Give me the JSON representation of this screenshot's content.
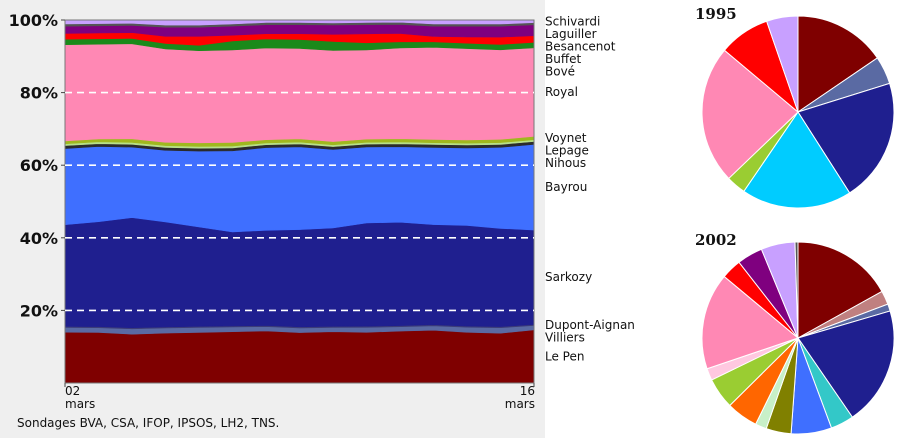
{
  "chart_data": [
    {
      "type": "area",
      "stacked_percent": true,
      "x": [
        "02 mars",
        "",
        "",
        "",
        "",
        "",
        "",
        "",
        "",
        "",
        "",
        "",
        "",
        "",
        "16 mars"
      ],
      "x_tick_labels": [
        {
          "day": "02",
          "month": "mars"
        },
        {
          "day": "16",
          "month": "mars"
        }
      ],
      "ylim": [
        0,
        100
      ],
      "yticks": [
        20,
        40,
        60,
        80,
        100
      ],
      "ytick_labels": [
        "20%",
        "40%",
        "60%",
        "80%",
        "100%"
      ],
      "grid": "dashed-white-horizontal",
      "series": [
        {
          "name": "Le Pen",
          "color": "#7f0000",
          "values": [
            14,
            14,
            13.5,
            13.8,
            14,
            14.2,
            14.5,
            14,
            14.3,
            14,
            14.3,
            14.5,
            14,
            13.7,
            14.5
          ]
        },
        {
          "name": "Villiers",
          "color": "#5a6aa3",
          "values": [
            1.3,
            1.3,
            1.5,
            1.4,
            1.4,
            1.3,
            1.2,
            1.3,
            1.2,
            1.4,
            1.2,
            1.2,
            1.4,
            1.5,
            1.2
          ]
        },
        {
          "name": "Dupont-Aignan",
          "color": "#3c3c78",
          "values": [
            0.3,
            0.3,
            0.3,
            0.3,
            0.3,
            0.3,
            0.3,
            0.3,
            0.3,
            0.3,
            0.3,
            0.3,
            0.3,
            0.3,
            0.3
          ]
        },
        {
          "name": "Sarkozy",
          "color": "#1f1f8f",
          "values": [
            28,
            29,
            30.5,
            29,
            27.5,
            26,
            26.5,
            27,
            27.4,
            28.5,
            28.5,
            27.5,
            27.8,
            27,
            25.8
          ]
        },
        {
          "name": "Bayrou",
          "color": "#3f6fff",
          "values": [
            21,
            20.8,
            19.5,
            19.8,
            21,
            22.5,
            23,
            23,
            21.9,
            21,
            20.8,
            21.2,
            21.4,
            22.3,
            23.4
          ]
        },
        {
          "name": "Nihous",
          "color": "#2b2b2b",
          "values": [
            0.8,
            0.8,
            0.8,
            0.8,
            0.8,
            0.8,
            0.8,
            0.8,
            0.8,
            0.8,
            0.8,
            0.8,
            0.8,
            0.8,
            0.8
          ]
        },
        {
          "name": "Lepage",
          "color": "#b8e08a",
          "values": [
            0.5,
            0.5,
            0.5,
            0.5,
            0.5,
            0.5,
            0.5,
            0.5,
            0.5,
            0.5,
            0.5,
            0.5,
            0.5,
            0.5,
            0.5
          ]
        },
        {
          "name": "Voynet",
          "color": "#a0b81e",
          "values": [
            0.8,
            0.8,
            1,
            0.9,
            1,
            1,
            0.9,
            0.9,
            0.9,
            0.9,
            0.9,
            0.9,
            0.9,
            0.9,
            0.9
          ]
        },
        {
          "name": "Royal",
          "color": "#ff88b4",
          "values": [
            26.5,
            26.2,
            26.3,
            25.8,
            25.5,
            25.6,
            25.5,
            25.1,
            25.4,
            24.6,
            25,
            25.3,
            25.2,
            24.6,
            24.2
          ]
        },
        {
          "name": "Bové",
          "color": "#1a8a1a",
          "values": [
            1.5,
            1.5,
            1.5,
            1.5,
            1.5,
            2.5,
            2.5,
            2.5,
            2.5,
            2,
            1.7,
            1.5,
            1.5,
            1.5,
            1.5
          ]
        },
        {
          "name": "Buffet",
          "color": "#ff0000",
          "values": [
            1.6,
            1.6,
            1.6,
            2,
            2.5,
            1.6,
            1.5,
            1.6,
            2,
            2.5,
            2.3,
            1.5,
            1.7,
            2,
            1.8
          ]
        },
        {
          "name": "Besancenot",
          "color": "#7f007f",
          "values": [
            2,
            2,
            2,
            2.5,
            2.5,
            2.5,
            2.5,
            2.5,
            2.6,
            2.5,
            2.5,
            2.8,
            3,
            3,
            3
          ]
        },
        {
          "name": "Laguiller",
          "color": "#555555",
          "values": [
            0.6,
            0.6,
            0.6,
            0.6,
            0.6,
            0.6,
            0.6,
            0.6,
            0.6,
            0.6,
            0.6,
            0.6,
            0.6,
            0.6,
            0.6
          ]
        },
        {
          "name": "Schivardi",
          "color": "#c8a0ff",
          "values": [
            1.1,
            1,
            0.9,
            1.4,
            1.4,
            1.1,
            0.7,
            0.7,
            0.8,
            0.7,
            0.6,
            1.1,
            1.1,
            1.1,
            0.7
          ]
        }
      ],
      "source": "Sondages BVA, CSA, IFOP, IPSOS, LH2, TNS."
    },
    {
      "type": "pie",
      "title": "1995",
      "slices": [
        {
          "value": 15.5,
          "color": "#7f0000"
        },
        {
          "value": 4.7,
          "color": "#5a6aa3"
        },
        {
          "value": 20.8,
          "color": "#1f1f8f"
        },
        {
          "value": 18.6,
          "color": "#00ccff"
        },
        {
          "value": 3.3,
          "color": "#9acd32"
        },
        {
          "value": 23.3,
          "color": "#ff88b4"
        },
        {
          "value": 8.6,
          "color": "#ff0000"
        },
        {
          "value": 5.3,
          "color": "#c8a0ff"
        }
      ]
    },
    {
      "type": "pie",
      "title": "2002",
      "slices": [
        {
          "value": 16.9,
          "color": "#7f0000"
        },
        {
          "value": 2.3,
          "color": "#c08080"
        },
        {
          "value": 1.2,
          "color": "#5a6aa3"
        },
        {
          "value": 19.9,
          "color": "#1f1f8f"
        },
        {
          "value": 3.9,
          "color": "#33c8c8"
        },
        {
          "value": 6.8,
          "color": "#3f6fff"
        },
        {
          "value": 4.2,
          "color": "#808000"
        },
        {
          "value": 1.9,
          "color": "#c8f0c8"
        },
        {
          "value": 5.3,
          "color": "#ff6600"
        },
        {
          "value": 5.2,
          "color": "#9acd32"
        },
        {
          "value": 2.0,
          "color": "#ffc8e0"
        },
        {
          "value": 16.2,
          "color": "#ff88b4"
        },
        {
          "value": 3.4,
          "color": "#ff0000"
        },
        {
          "value": 4.3,
          "color": "#7f007f"
        },
        {
          "value": 5.7,
          "color": "#c8a0ff"
        },
        {
          "value": 0.5,
          "color": "#555555"
        }
      ]
    }
  ]
}
